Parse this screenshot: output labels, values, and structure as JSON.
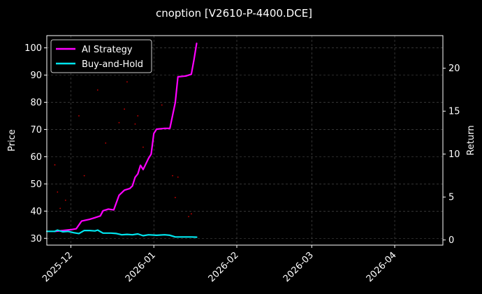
{
  "chart_data": {
    "type": "line",
    "title": "cnoption [V2610-P-4400.DCE]",
    "ylabel_left": "Price",
    "ylabel_right": "Return",
    "xlim": [
      "2025-11-22",
      "2026-04-19"
    ],
    "ylim_left": [
      27.5,
      104.5
    ],
    "ylim_right": [
      -0.6,
      23.8
    ],
    "x_ticks": [
      {
        "date": "2025-12-01",
        "label": "2025-12"
      },
      {
        "date": "2026-01-01",
        "label": "2026-01"
      },
      {
        "date": "2026-02-01",
        "label": "2026-02"
      },
      {
        "date": "2026-03-01",
        "label": "2026-03"
      },
      {
        "date": "2026-04-01",
        "label": "2026-04"
      }
    ],
    "y_ticks_left": [
      30,
      40,
      50,
      60,
      70,
      80,
      90,
      100
    ],
    "y_ticks_right": [
      0,
      5,
      10,
      15,
      20
    ],
    "grid": true,
    "legend_position": "top-left",
    "colors": {
      "background": "#000000",
      "ai_strategy": "#ff00ff",
      "buy_and_hold": "#00e5ee",
      "price_points": "#cc0000",
      "grid": "#555555",
      "axes": "#ffffff"
    },
    "series": [
      {
        "name": "AI Strategy",
        "axis": "right",
        "points": [
          [
            "2025-11-25",
            1.0
          ],
          [
            "2025-11-28",
            1.1
          ],
          [
            "2025-12-01",
            1.2
          ],
          [
            "2025-12-03",
            1.3
          ],
          [
            "2025-12-05",
            2.2
          ],
          [
            "2025-12-08",
            2.4
          ],
          [
            "2025-12-10",
            2.6
          ],
          [
            "2025-12-12",
            2.8
          ],
          [
            "2025-12-13",
            3.4
          ],
          [
            "2025-12-15",
            3.6
          ],
          [
            "2025-12-17",
            3.5
          ],
          [
            "2025-12-19",
            5.2
          ],
          [
            "2025-12-21",
            5.8
          ],
          [
            "2025-12-23",
            6.0
          ],
          [
            "2025-12-24",
            6.3
          ],
          [
            "2025-12-25",
            7.3
          ],
          [
            "2025-12-26",
            7.7
          ],
          [
            "2025-12-27",
            8.7
          ],
          [
            "2025-12-28",
            8.2
          ],
          [
            "2025-12-30",
            9.5
          ],
          [
            "2025-12-31",
            10.0
          ],
          [
            "2026-01-01",
            12.4
          ],
          [
            "2026-01-02",
            12.9
          ],
          [
            "2026-01-05",
            13.0
          ],
          [
            "2026-01-07",
            13.0
          ],
          [
            "2026-01-09",
            16.0
          ],
          [
            "2026-01-10",
            19.0
          ],
          [
            "2026-01-13",
            19.1
          ],
          [
            "2026-01-15",
            19.3
          ],
          [
            "2026-01-16",
            21.0
          ],
          [
            "2026-01-17",
            22.9
          ]
        ]
      },
      {
        "name": "Buy-and-Hold",
        "axis": "right",
        "points": [
          [
            "2025-11-22",
            1.0
          ],
          [
            "2025-11-25",
            1.0
          ],
          [
            "2025-11-26",
            1.15
          ],
          [
            "2025-11-28",
            0.95
          ],
          [
            "2025-11-30",
            1.0
          ],
          [
            "2025-12-02",
            0.85
          ],
          [
            "2025-12-04",
            0.75
          ],
          [
            "2025-12-06",
            1.1
          ],
          [
            "2025-12-08",
            1.1
          ],
          [
            "2025-12-10",
            1.05
          ],
          [
            "2025-12-11",
            1.15
          ],
          [
            "2025-12-13",
            0.8
          ],
          [
            "2025-12-16",
            0.8
          ],
          [
            "2025-12-18",
            0.75
          ],
          [
            "2025-12-20",
            0.6
          ],
          [
            "2025-12-22",
            0.65
          ],
          [
            "2025-12-24",
            0.6
          ],
          [
            "2025-12-26",
            0.7
          ],
          [
            "2025-12-28",
            0.5
          ],
          [
            "2025-12-30",
            0.6
          ],
          [
            "2026-01-02",
            0.55
          ],
          [
            "2026-01-05",
            0.6
          ],
          [
            "2026-01-07",
            0.55
          ],
          [
            "2026-01-09",
            0.35
          ],
          [
            "2026-01-12",
            0.35
          ],
          [
            "2026-01-15",
            0.35
          ],
          [
            "2026-01-17",
            0.33
          ]
        ]
      }
    ],
    "price_points": [
      [
        "2025-11-25",
        57
      ],
      [
        "2025-11-26",
        47
      ],
      [
        "2025-11-27",
        41
      ],
      [
        "2025-11-29",
        44
      ],
      [
        "2025-12-04",
        75
      ],
      [
        "2025-12-06",
        53
      ],
      [
        "2025-12-11",
        84.5
      ],
      [
        "2025-12-14",
        65
      ],
      [
        "2025-12-19",
        72.5
      ],
      [
        "2025-12-21",
        77.5
      ],
      [
        "2025-12-22",
        87.5
      ],
      [
        "2025-12-25",
        72
      ],
      [
        "2025-12-26",
        75
      ],
      [
        "2025-12-28",
        63.5
      ],
      [
        "2026-01-04",
        79
      ],
      [
        "2026-01-08",
        53
      ],
      [
        "2026-01-09",
        45
      ],
      [
        "2026-01-10",
        52.5
      ],
      [
        "2026-01-14",
        38
      ],
      [
        "2026-01-15",
        39
      ]
    ]
  }
}
